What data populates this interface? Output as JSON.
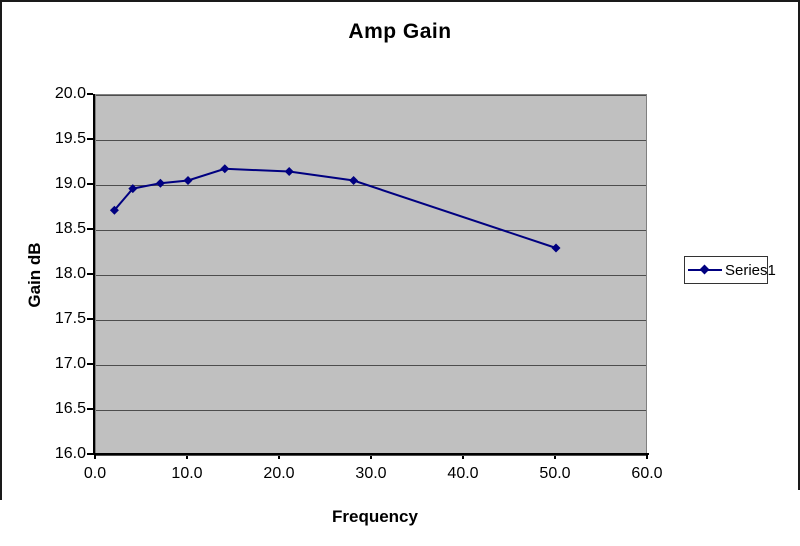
{
  "chart_data": {
    "type": "line",
    "title": "Amp Gain",
    "xlabel": "Frequency",
    "ylabel": "Gain dB",
    "x": [
      2,
      4,
      7,
      10,
      14,
      21,
      28,
      50
    ],
    "series": [
      {
        "name": "Series1",
        "values": [
          18.72,
          18.96,
          19.02,
          19.05,
          19.18,
          19.15,
          19.05,
          18.3
        ]
      }
    ],
    "xlim": [
      0,
      60
    ],
    "ylim": [
      16,
      20
    ],
    "x_ticks": [
      0,
      10,
      20,
      30,
      40,
      50,
      60
    ],
    "x_tick_labels": [
      "0.0",
      "10.0",
      "20.0",
      "30.0",
      "40.0",
      "50.0",
      "60.0"
    ],
    "y_ticks": [
      20,
      19.5,
      19,
      18.5,
      18,
      17.5,
      17,
      16.5,
      16
    ],
    "y_tick_labels": [
      "20.0",
      "19.5",
      "19.0",
      "18.5",
      "18.0",
      "17.5",
      "17.0",
      "16.5",
      "16.0"
    ],
    "grid": "horizontal",
    "legend_position": "right",
    "marker": "diamond",
    "colors": {
      "series": "#000080",
      "plot_bg": "#c0c0c0",
      "gridline": "#4d4d4d",
      "axis": "#000000",
      "frame_border": "#1a1a1a",
      "legend_border": "#333333",
      "text": "#000000"
    }
  },
  "legend": {
    "items": [
      {
        "label": "Series1",
        "marker": "diamond-icon",
        "color": "#000080"
      }
    ]
  }
}
